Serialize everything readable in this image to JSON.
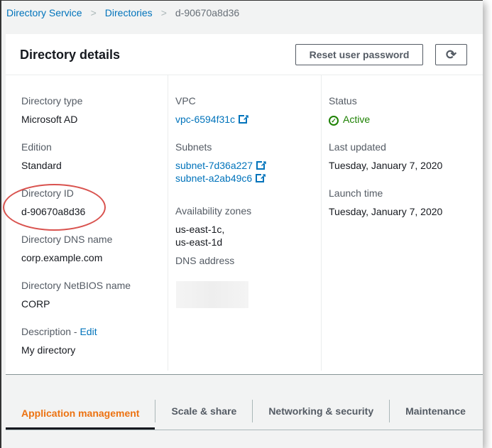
{
  "breadcrumb": [
    "Directory Service",
    "Directories",
    "d-90670a8d36"
  ],
  "panel": {
    "title": "Directory details",
    "reset_button": "Reset user password",
    "refresh_icon": "refresh-icon"
  },
  "col1": {
    "directory_type_label": "Directory type",
    "directory_type": "Microsoft AD",
    "edition_label": "Edition",
    "edition": "Standard",
    "directory_id_label": "Directory ID",
    "directory_id": "d-90670a8d36",
    "dns_name_label": "Directory DNS name",
    "dns_name": "corp.example.com",
    "netbios_label": "Directory NetBIOS name",
    "netbios": "CORP",
    "description_label": "Description - ",
    "edit_link": "Edit",
    "description": "My directory"
  },
  "col2": {
    "vpc_label": "VPC",
    "vpc": "vpc-6594f31c",
    "subnets_label": "Subnets",
    "subnets": [
      "subnet-7d36a227",
      "subnet-a2ab49c6"
    ],
    "az_label": "Availability zones",
    "az": [
      "us-east-1c,",
      "us-east-1d"
    ],
    "dns_label": "DNS address"
  },
  "col3": {
    "status_label": "Status",
    "status": "Active",
    "status_color": "#1d8102",
    "updated_label": "Last updated",
    "updated": "Tuesday, January 7, 2020",
    "launch_label": "Launch time",
    "launch": "Tuesday, January 7, 2020"
  },
  "tabs": [
    {
      "label": "Application management",
      "active": true
    },
    {
      "label": "Scale & share"
    },
    {
      "label": "Networking & security"
    },
    {
      "label": "Maintenance"
    }
  ]
}
